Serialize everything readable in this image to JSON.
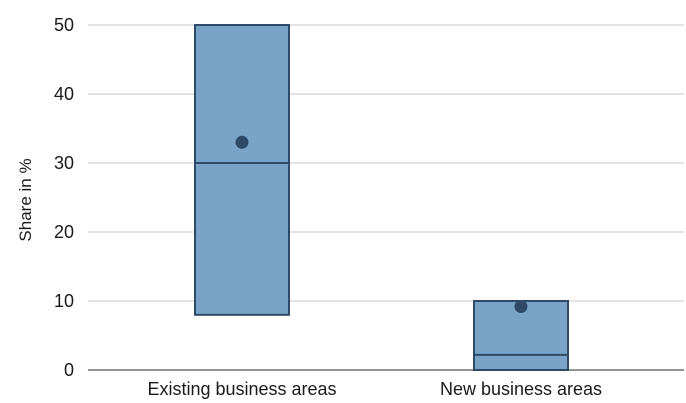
{
  "chart_data": {
    "type": "box",
    "title": "",
    "xlabel": "",
    "ylabel": "Share in %",
    "ylim": [
      0,
      50
    ],
    "yticks": [
      0,
      10,
      20,
      30,
      40,
      50
    ],
    "grid": true,
    "categories": [
      "Existing business areas",
      "New business areas"
    ],
    "boxes": [
      {
        "category": "Existing business areas",
        "q1": 8,
        "median": 30,
        "q3": 50,
        "mean": 33
      },
      {
        "category": "New business areas",
        "q1": 0,
        "median": 2.2,
        "q3": 10,
        "mean": 9.2
      }
    ],
    "colors": {
      "box_fill": "#7aa3c8",
      "box_stroke": "#2f4a66",
      "mean_marker": "#2f4a66",
      "grid": "#c8c8c8",
      "axis": "#555555"
    }
  }
}
